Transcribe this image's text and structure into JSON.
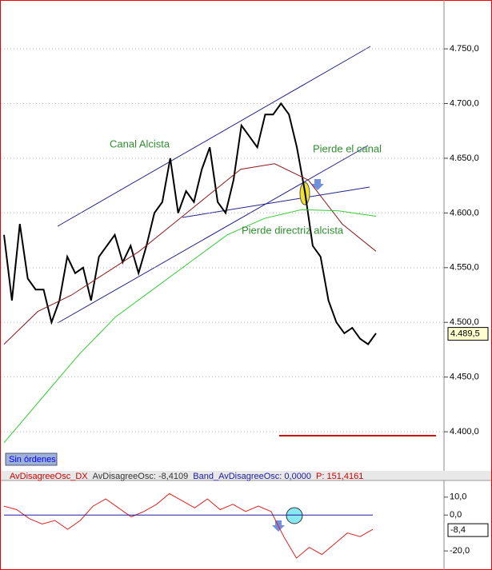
{
  "chart_data": [
    {
      "type": "line",
      "series": [
        {
          "color": "#000000",
          "values": [
            4580,
            4520,
            4590,
            4540,
            4530,
            4530,
            4500,
            4520,
            4560,
            4545,
            4550,
            4520,
            4560,
            4570,
            4580,
            4555,
            4570,
            4545,
            4570,
            4600,
            4610,
            4650,
            4600,
            4620,
            4610,
            4640,
            4660,
            4610,
            4600,
            4630,
            4680,
            4670,
            4660,
            4690,
            4690,
            4700,
            4690,
            4660,
            4620,
            4570,
            4560,
            4520,
            4500,
            4490,
            4495,
            4485,
            4480,
            4490
          ]
        },
        {
          "color": "#8b1a1a",
          "values": [
            4480,
            4510,
            4525,
            4545,
            4565,
            4590,
            4615,
            4640,
            4645,
            4630,
            4590,
            4565
          ]
        },
        {
          "color": "#33cc33",
          "values": [
            4390,
            4430,
            4470,
            4505,
            4530,
            4555,
            4580,
            4595,
            4603,
            4602,
            4597
          ]
        }
      ],
      "ylim": [
        4365,
        4791
      ],
      "yticks": [
        {
          "value": 4400,
          "label": "4.400,0"
        },
        {
          "value": 4450,
          "label": "4.450,0"
        },
        {
          "value": 4500,
          "label": "4.500,0"
        },
        {
          "value": 4550,
          "label": "4.550,0"
        },
        {
          "value": 4600,
          "label": "4.600,0"
        },
        {
          "value": 4650,
          "label": "4.650,0"
        },
        {
          "value": 4700,
          "label": "4.700,0"
        },
        {
          "value": 4750,
          "label": "4.750,0"
        }
      ],
      "grid": true,
      "annotations": [
        "Canal Alcista",
        "Pierde el canal",
        "Pierde directriz alcista"
      ],
      "last_price": {
        "value": 4489.5,
        "label": "4.489,5"
      },
      "status": "Sin órdenes"
    },
    {
      "type": "line",
      "header": [
        "AvDisagreeOsc_DX",
        "AvDisagreeOsc: -8,4109",
        "Band_AvDisagreeOsc: 0,0000",
        "P: 151,4161"
      ],
      "series": [
        {
          "color": "#dd2222",
          "values": [
            5,
            3,
            -2,
            -5,
            -3,
            -8,
            -3,
            5,
            9,
            4,
            -1,
            2,
            6,
            12,
            8,
            4,
            9,
            3,
            6,
            2,
            5,
            2,
            -12,
            -24,
            -18,
            -22,
            -16,
            -10,
            -12,
            -8
          ]
        },
        {
          "color": "#1a1aa0",
          "values": [
            0,
            0
          ]
        }
      ],
      "ylim": [
        -29.3,
        18.4
      ],
      "yticks": [
        {
          "value": 10,
          "label": "10,0"
        },
        {
          "value": 0,
          "label": "0,0"
        },
        {
          "value": -20,
          "label": "-20,0"
        }
      ],
      "last_value": {
        "value": -8.4,
        "label": "-8,4"
      }
    }
  ]
}
